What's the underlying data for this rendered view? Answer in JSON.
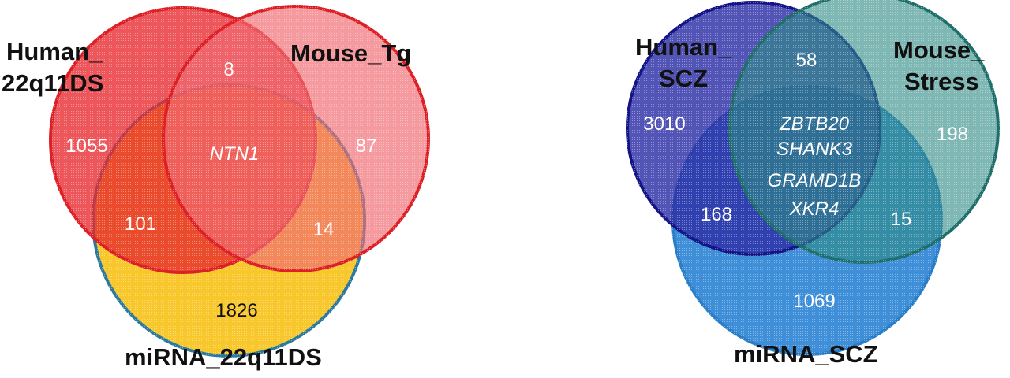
{
  "left_venn": {
    "sets": {
      "human": "Human_\n22q11DS",
      "mouse": "Mouse_Tg",
      "mirna": "miRNA_22q11DS"
    },
    "regions": {
      "human_only": "1055",
      "mouse_only": "87",
      "mirna_only": "1826",
      "human_mouse": "8",
      "human_mirna": "101",
      "mouse_mirna": "14",
      "all_three": "NTN1"
    },
    "colors": {
      "human": "#e8282e",
      "mouse": "#f06a72",
      "mirna": "#f7c72c",
      "outline_red": "#dd1f26",
      "outline_blue": "#2a7aa0"
    }
  },
  "right_venn": {
    "sets": {
      "human": "Human_\nSCZ",
      "mouse": "Mouse_\nStress",
      "mirna": "miRNA_SCZ"
    },
    "regions": {
      "human_only": "3010",
      "mouse_only": "198",
      "mirna_only": "1069",
      "human_mouse": "58",
      "human_mirna": "168",
      "mouse_mirna": "15",
      "all_three": "ZBTB20\nSHANK3\nGRAMD1B\nXKR4"
    },
    "colors": {
      "human": "#2d2fa6",
      "mouse": "#2e8a86",
      "mirna": "#3f8fd8",
      "outline_human": "#121488",
      "outline_mouse": "#1e6e6a",
      "outline_mirna": "#2a7ec8"
    }
  }
}
